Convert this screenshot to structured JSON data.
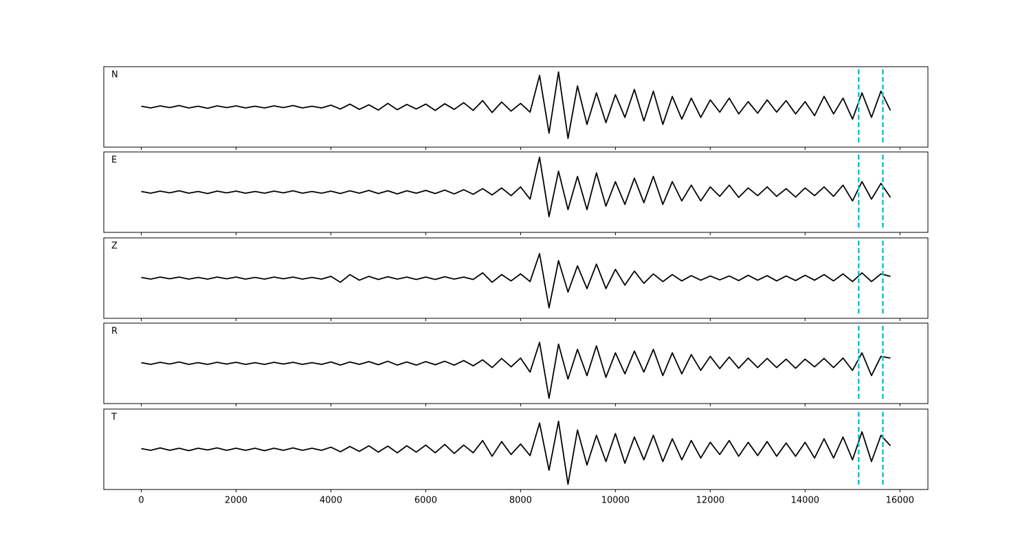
{
  "chart_data": {
    "type": "line",
    "layout": "stacked",
    "x": [
      0,
      200,
      400,
      600,
      800,
      1000,
      1200,
      1400,
      1600,
      1800,
      2000,
      2200,
      2400,
      2600,
      2800,
      3000,
      3200,
      3400,
      3600,
      3800,
      4000,
      4200,
      4400,
      4600,
      4800,
      5000,
      5200,
      5400,
      5600,
      5800,
      6000,
      6200,
      6400,
      6600,
      6800,
      7000,
      7200,
      7400,
      7600,
      7800,
      8000,
      8200,
      8400,
      8600,
      8800,
      9000,
      9200,
      9400,
      9600,
      9800,
      10000,
      10200,
      10400,
      10600,
      10800,
      11000,
      11200,
      11400,
      11600,
      11800,
      12000,
      12200,
      12400,
      12600,
      12800,
      13000,
      13200,
      13400,
      13600,
      13800,
      14000,
      14200,
      14400,
      14600,
      14800,
      15000,
      15200,
      15400,
      15600,
      15800
    ],
    "series": [
      {
        "name": "N",
        "color": "#000000",
        "values": [
          0.02,
          -0.03,
          0.03,
          -0.02,
          0.04,
          -0.03,
          0.02,
          -0.04,
          0.03,
          -0.02,
          0.03,
          -0.03,
          0.02,
          -0.03,
          0.03,
          -0.02,
          0.04,
          -0.03,
          0.02,
          -0.03,
          0.05,
          -0.06,
          0.08,
          -0.07,
          0.06,
          -0.09,
          0.1,
          -0.08,
          0.07,
          -0.06,
          0.08,
          -0.1,
          0.09,
          -0.07,
          0.12,
          -0.1,
          0.18,
          -0.16,
          0.14,
          -0.12,
          0.1,
          -0.15,
          0.9,
          -0.75,
          1.0,
          -0.9,
          0.6,
          -0.5,
          0.4,
          -0.45,
          0.35,
          -0.3,
          0.5,
          -0.4,
          0.45,
          -0.5,
          0.3,
          -0.35,
          0.25,
          -0.3,
          0.2,
          -0.15,
          0.25,
          -0.2,
          0.15,
          -0.18,
          0.2,
          -0.15,
          0.18,
          -0.2,
          0.15,
          -0.25,
          0.3,
          -0.2,
          0.25,
          -0.35,
          0.4,
          -0.3,
          0.45,
          -0.1
        ]
      },
      {
        "name": "E",
        "color": "#000000",
        "values": [
          0.02,
          -0.03,
          0.03,
          -0.02,
          0.04,
          -0.03,
          0.02,
          -0.04,
          0.03,
          -0.02,
          0.03,
          -0.03,
          0.02,
          -0.03,
          0.03,
          -0.02,
          0.04,
          -0.03,
          0.02,
          -0.03,
          0.03,
          -0.04,
          0.04,
          -0.03,
          0.05,
          -0.04,
          0.04,
          -0.05,
          0.04,
          -0.03,
          0.05,
          -0.04,
          0.06,
          -0.05,
          0.07,
          -0.06,
          0.1,
          -0.08,
          0.12,
          -0.1,
          0.15,
          -0.2,
          1.0,
          -0.7,
          0.6,
          -0.5,
          0.45,
          -0.5,
          0.55,
          -0.4,
          0.3,
          -0.35,
          0.4,
          -0.3,
          0.45,
          -0.35,
          0.3,
          -0.25,
          0.2,
          -0.25,
          0.15,
          -0.12,
          0.2,
          -0.15,
          0.12,
          -0.1,
          0.15,
          -0.12,
          0.1,
          -0.14,
          0.12,
          -0.1,
          0.15,
          -0.12,
          0.2,
          -0.25,
          0.3,
          -0.2,
          0.25,
          -0.15
        ]
      },
      {
        "name": "Z",
        "color": "#000000",
        "values": [
          0.02,
          -0.03,
          0.03,
          -0.02,
          0.03,
          -0.03,
          0.02,
          -0.03,
          0.03,
          -0.02,
          0.03,
          -0.03,
          0.02,
          -0.03,
          0.03,
          -0.02,
          0.03,
          -0.03,
          0.02,
          -0.03,
          0.05,
          -0.12,
          0.1,
          -0.06,
          0.05,
          -0.04,
          0.04,
          -0.03,
          0.03,
          -0.04,
          0.03,
          -0.04,
          0.04,
          -0.03,
          0.03,
          -0.04,
          0.15,
          -0.12,
          0.1,
          -0.08,
          0.12,
          -0.1,
          0.7,
          -0.85,
          0.5,
          -0.4,
          0.35,
          -0.3,
          0.4,
          -0.3,
          0.25,
          -0.2,
          0.2,
          -0.15,
          0.12,
          -0.1,
          0.1,
          -0.08,
          0.07,
          -0.06,
          0.06,
          -0.05,
          0.06,
          -0.07,
          0.08,
          -0.06,
          0.07,
          -0.08,
          0.06,
          -0.07,
          0.08,
          -0.06,
          0.1,
          -0.08,
          0.12,
          -0.1,
          0.15,
          -0.1,
          0.12,
          0.05
        ]
      },
      {
        "name": "R",
        "color": "#000000",
        "values": [
          0.02,
          -0.03,
          0.03,
          -0.02,
          0.04,
          -0.03,
          0.02,
          -0.03,
          0.03,
          -0.02,
          0.03,
          -0.03,
          0.02,
          -0.03,
          0.03,
          -0.02,
          0.03,
          -0.03,
          0.02,
          -0.03,
          0.04,
          -0.05,
          0.04,
          -0.03,
          0.05,
          -0.04,
          0.06,
          -0.05,
          0.04,
          -0.05,
          0.05,
          -0.04,
          0.06,
          -0.05,
          0.08,
          -0.07,
          0.1,
          -0.12,
          0.14,
          -0.1,
          0.15,
          -0.25,
          0.6,
          -1.0,
          0.55,
          -0.45,
          0.4,
          -0.35,
          0.5,
          -0.4,
          0.3,
          -0.3,
          0.35,
          -0.25,
          0.4,
          -0.35,
          0.3,
          -0.3,
          0.25,
          -0.2,
          0.2,
          -0.15,
          0.18,
          -0.14,
          0.15,
          -0.12,
          0.14,
          -0.12,
          0.12,
          -0.14,
          0.12,
          -0.1,
          0.14,
          -0.12,
          0.15,
          -0.2,
          0.3,
          -0.35,
          0.2,
          0.15
        ]
      },
      {
        "name": "T",
        "color": "#000000",
        "values": [
          0.02,
          -0.03,
          0.04,
          -0.03,
          0.03,
          -0.04,
          0.03,
          -0.02,
          0.04,
          -0.03,
          0.03,
          -0.03,
          0.03,
          -0.04,
          0.03,
          -0.03,
          0.04,
          -0.03,
          0.03,
          -0.03,
          0.06,
          -0.07,
          0.08,
          -0.06,
          0.1,
          -0.08,
          0.09,
          -0.1,
          0.1,
          -0.08,
          0.12,
          -0.1,
          0.14,
          -0.12,
          0.12,
          -0.1,
          0.25,
          -0.2,
          0.22,
          -0.15,
          0.15,
          -0.18,
          0.75,
          -0.6,
          0.8,
          -1.0,
          0.55,
          -0.45,
          0.4,
          -0.35,
          0.45,
          -0.4,
          0.35,
          -0.3,
          0.4,
          -0.35,
          0.3,
          -0.3,
          0.25,
          -0.25,
          0.2,
          -0.15,
          0.25,
          -0.2,
          0.2,
          -0.18,
          0.22,
          -0.2,
          0.18,
          -0.2,
          0.2,
          -0.25,
          0.3,
          -0.25,
          0.35,
          -0.3,
          0.5,
          -0.35,
          0.4,
          0.1
        ]
      }
    ],
    "xlim": [
      -790,
      16590
    ],
    "xticks": [
      0,
      2000,
      4000,
      6000,
      8000,
      10000,
      12000,
      14000,
      16000
    ],
    "ylim": [
      -1.15,
      1.15
    ],
    "vlines": [
      15130,
      15640
    ],
    "vline_color": "#17bfcf"
  }
}
